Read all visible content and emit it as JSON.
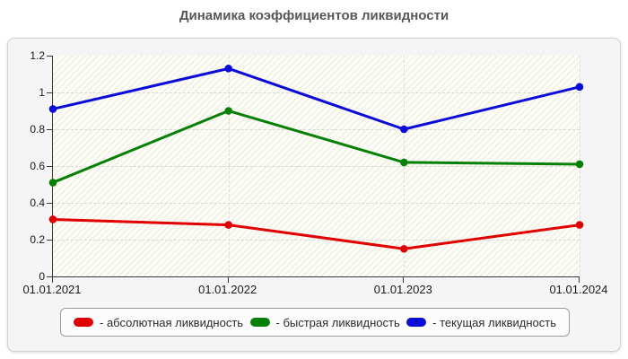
{
  "title": "Динамика коэффициентов ликвидности",
  "chart_data": {
    "type": "line",
    "title": "Динамика коэффициентов ликвидности",
    "x": [
      "01.01.2021",
      "01.01.2022",
      "01.01.2023",
      "01.01.2024"
    ],
    "series": [
      {
        "name": "абсолютная ликвидность",
        "color": "#e00000",
        "values": [
          0.31,
          0.28,
          0.15,
          0.28
        ]
      },
      {
        "name": "быстрая ликвидность",
        "color": "#068006",
        "values": [
          0.51,
          0.9,
          0.62,
          0.61
        ]
      },
      {
        "name": "текущая ликвидность",
        "color": "#0c0cd9",
        "values": [
          0.91,
          1.13,
          0.8,
          1.03
        ]
      }
    ],
    "ylim": [
      0,
      1.2
    ],
    "yticks": [
      0,
      0.2,
      0.4,
      0.6,
      0.8,
      1,
      1.2
    ],
    "ytick_labels": [
      "0",
      "0.2",
      "0.4",
      "0.6",
      "0.8",
      "1",
      "1.2"
    ],
    "grid": true,
    "legend_position": "bottom",
    "legend_prefix": "- ",
    "colors": {
      "axis": "#3a3a3a",
      "grid": "#d8d8d8",
      "title": "#575757"
    }
  }
}
